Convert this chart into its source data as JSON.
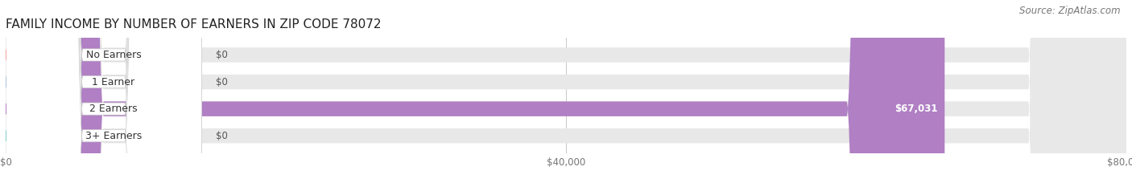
{
  "title": "FAMILY INCOME BY NUMBER OF EARNERS IN ZIP CODE 78072",
  "source": "Source: ZipAtlas.com",
  "categories": [
    "No Earners",
    "1 Earner",
    "2 Earners",
    "3+ Earners"
  ],
  "values": [
    0,
    0,
    67031,
    0
  ],
  "bar_colors": [
    "#f4a0a0",
    "#a8c4e0",
    "#b07fc4",
    "#7ecece"
  ],
  "value_labels": [
    "$0",
    "$0",
    "$67,031",
    "$0"
  ],
  "xlim": [
    0,
    80000
  ],
  "xticks": [
    0,
    40000,
    80000
  ],
  "xticklabels": [
    "$0",
    "$40,000",
    "$80,000"
  ],
  "bar_height": 0.55,
  "bar_bg_color": "#e8e8e8",
  "title_fontsize": 11,
  "source_fontsize": 8.5,
  "label_fontsize": 9,
  "value_fontsize": 8.5,
  "tick_fontsize": 8.5
}
